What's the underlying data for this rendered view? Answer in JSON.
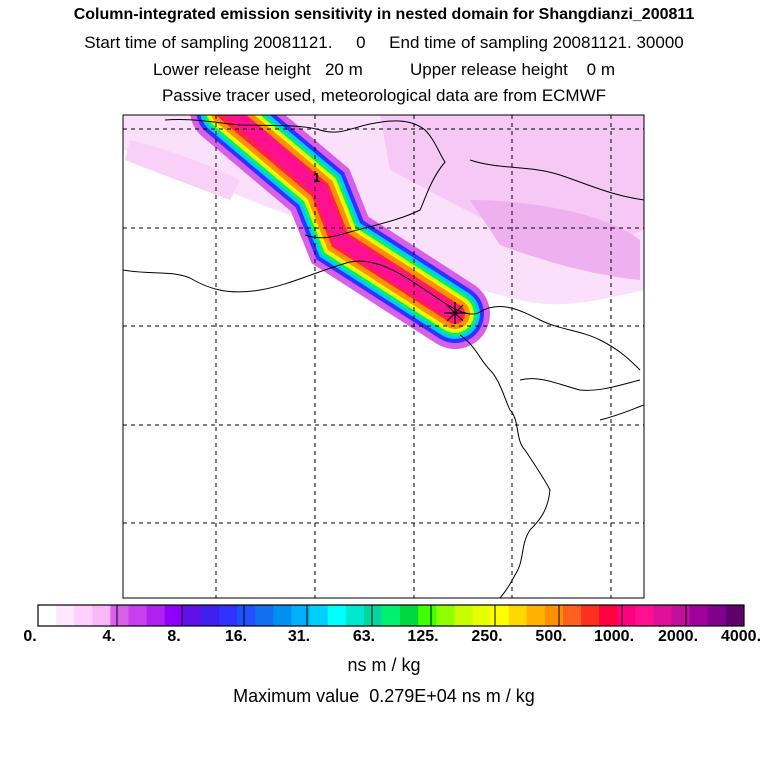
{
  "header": {
    "title": "Column-integrated emission sensitivity in nested domain for Shangdianzi_200811",
    "sampling": "Start time of sampling 20081121.     0     End time of sampling 20081121. 30000",
    "heights": "Lower release height   20 m          Upper release height    0 m",
    "tracer": "Passive tracer used, meteorological data are from ECMWF"
  },
  "map": {
    "release_site_marker": "star",
    "contour_label": "1"
  },
  "colorbar": {
    "ticks": [
      "0.",
      "4.",
      "8.",
      "16.",
      "31.",
      "63.",
      "125.",
      "250.",
      "500.",
      "1000.",
      "2000.",
      "4000."
    ],
    "units": "ns m / kg",
    "colors": [
      "#ffffff",
      "#ffe8ff",
      "#ffd0ff",
      "#f8b8f8",
      "#d860e8",
      "#c840f0",
      "#b020f0",
      "#9000f8",
      "#6010e8",
      "#4020f0",
      "#3030ff",
      "#2050ff",
      "#1070f0",
      "#0090f0",
      "#00b0f8",
      "#00d0ff",
      "#00ffff",
      "#00e8d0",
      "#00d8a0",
      "#00f070",
      "#00d840",
      "#40ff00",
      "#90ff00",
      "#c8ff00",
      "#e8ff00",
      "#ffff00",
      "#ffd800",
      "#ffb000",
      "#ff9000",
      "#ff6020",
      "#ff3020",
      "#ff0040",
      "#ff0080",
      "#ff1090",
      "#e01098",
      "#c0109c",
      "#a0009c",
      "#80008c",
      "#60006c"
    ]
  },
  "max_value": "Maximum value  0.279E+04 ns m / kg"
}
